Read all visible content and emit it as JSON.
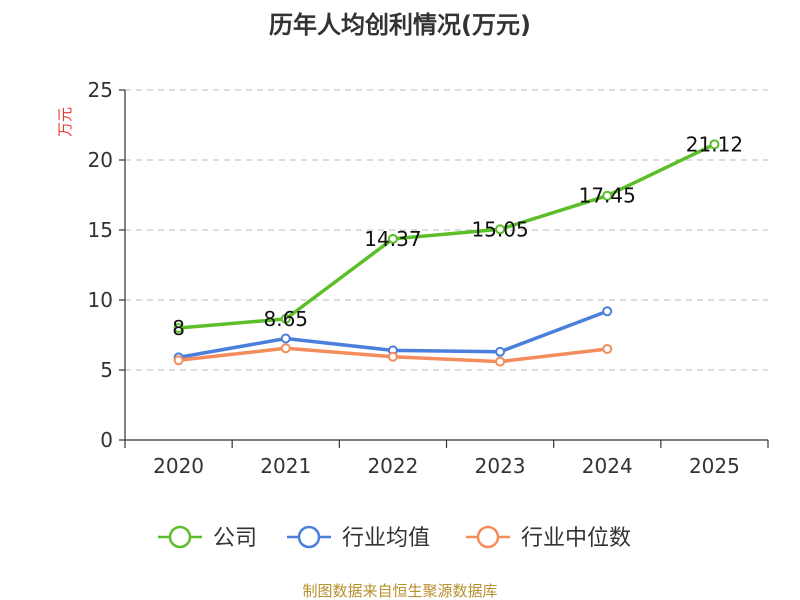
{
  "chart_data": {
    "type": "line",
    "title": "历年人均创利情况(万元)",
    "ylabel": "万元",
    "xlabel": "",
    "ylim": [
      0,
      25
    ],
    "yticks": [
      "0",
      "5",
      "10",
      "15",
      "20",
      "25"
    ],
    "categories": [
      "2020",
      "2021",
      "2022",
      "2023",
      "2024",
      "2025"
    ],
    "grid": true,
    "legend_position": "bottom",
    "series": [
      {
        "name": "公司",
        "color": "#5cbf2a",
        "values": [
          8,
          8.65,
          14.37,
          15.05,
          17.45,
          21.12
        ],
        "labels": [
          "8",
          "8.65",
          "14.37",
          "15.05",
          "17.45",
          "21.12"
        ]
      },
      {
        "name": "行业均值",
        "color": "#4a7fdc",
        "values": [
          5.9,
          7.25,
          6.4,
          6.3,
          9.2,
          null
        ]
      },
      {
        "name": "行业中位数",
        "color": "#f48c5c",
        "values": [
          5.7,
          6.55,
          5.95,
          5.6,
          6.5,
          null
        ]
      }
    ]
  },
  "source_text": "制图数据来自恒生聚源数据库"
}
